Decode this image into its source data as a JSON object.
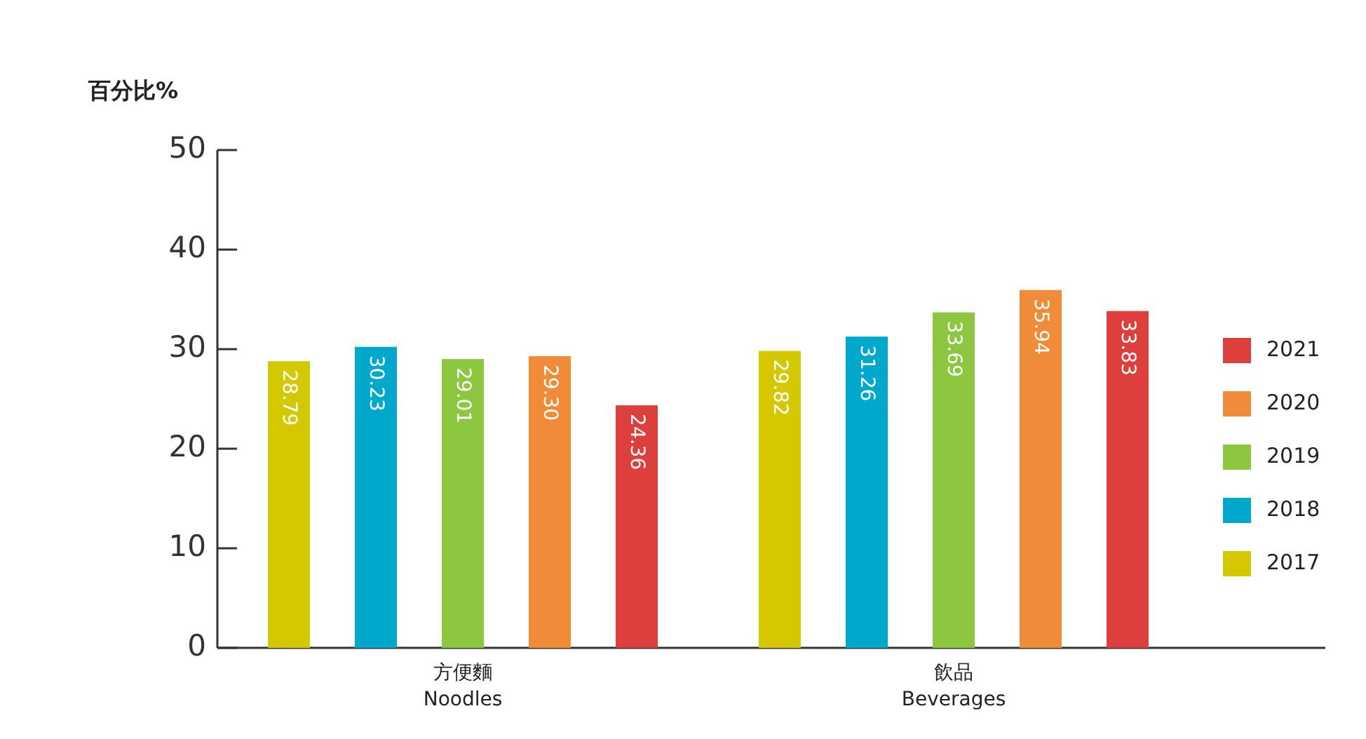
{
  "chart_data": {
    "type": "bar",
    "ylabel": "百分比%",
    "categories": [
      "方便麵\nNoodles",
      "飲品\nBeverages"
    ],
    "series": [
      {
        "name": "2017",
        "color": "#d4c800",
        "values": [
          28.79,
          29.82
        ],
        "value_labels": [
          "28.79",
          "29.82"
        ]
      },
      {
        "name": "2018",
        "color": "#00a9cc",
        "values": [
          30.23,
          31.26
        ],
        "value_labels": [
          "30.23",
          "31.26"
        ]
      },
      {
        "name": "2019",
        "color": "#8dc63f",
        "values": [
          29.01,
          33.69
        ],
        "value_labels": [
          "29.01",
          "33.69"
        ]
      },
      {
        "name": "2020",
        "color": "#f08c38",
        "values": [
          29.3,
          35.94
        ],
        "value_labels": [
          "29.30",
          "35.94"
        ]
      },
      {
        "name": "2021",
        "color": "#dc3f3c",
        "values": [
          24.36,
          33.83
        ],
        "value_labels": [
          "24.36",
          "33.83"
        ]
      }
    ],
    "ylim": [
      0,
      50
    ],
    "yticks": [
      0,
      10,
      20,
      30,
      40,
      50
    ],
    "grid": false,
    "legend": "right"
  }
}
